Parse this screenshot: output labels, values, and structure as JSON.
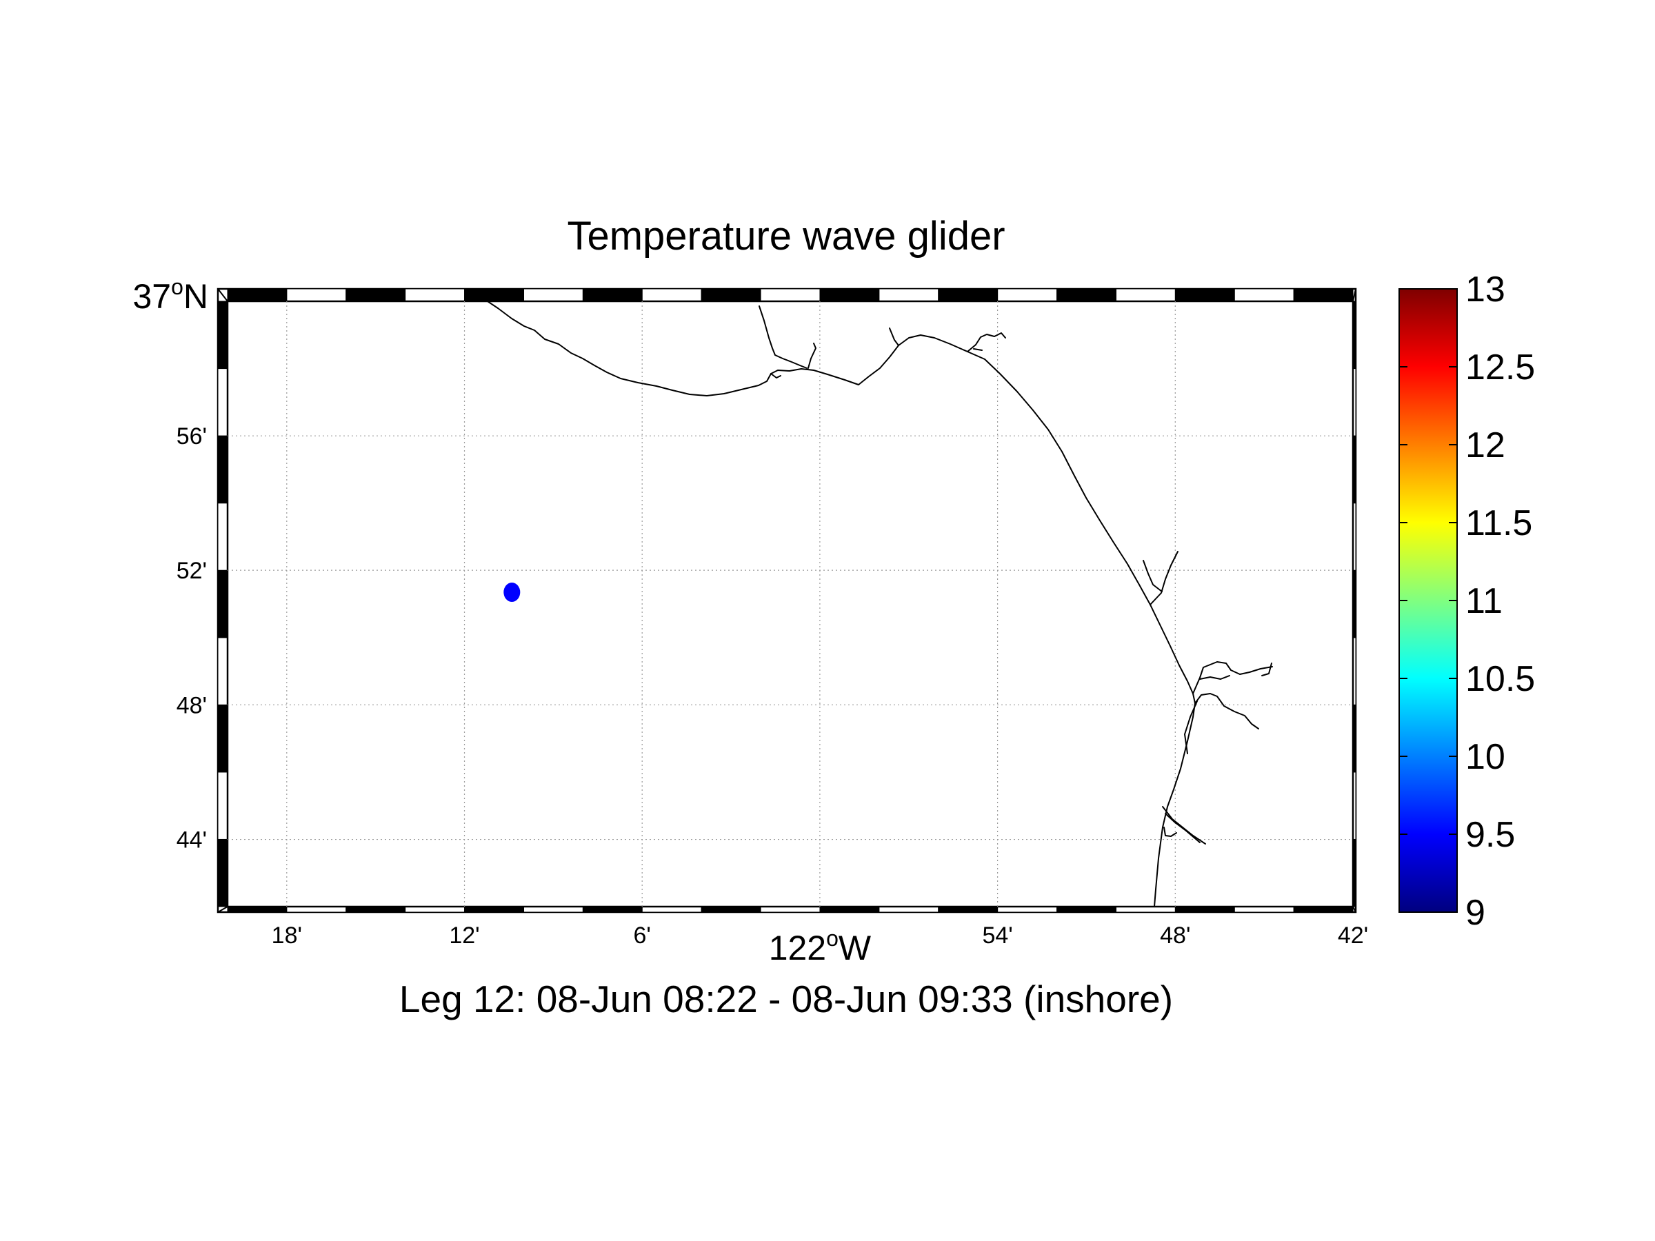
{
  "title": "Temperature wave glider",
  "subtitle": "Leg 12: 08-Jun 08:22 - 08-Jun 09:33 (inshore)",
  "map": {
    "lon_range": [
      -122.3333,
      -121.7
    ],
    "lat_range": [
      36.7,
      37.0
    ],
    "lon_ticks": [
      {
        "value": -122.3,
        "label": "18'"
      },
      {
        "value": -122.2,
        "label": "12'"
      },
      {
        "value": -122.1,
        "label": "6'"
      },
      {
        "value": -122.0,
        "label": "122",
        "sup": "o",
        "hemi": "W"
      },
      {
        "value": -121.9,
        "label": "54'"
      },
      {
        "value": -121.8,
        "label": "48'"
      },
      {
        "value": -121.7,
        "label": "42'"
      }
    ],
    "lat_ticks": [
      {
        "value": 37.0,
        "label": "37",
        "sup": "o",
        "hemi": "N"
      },
      {
        "value": 36.9333,
        "label": "56'"
      },
      {
        "value": 36.8667,
        "label": "52'"
      },
      {
        "value": 36.8,
        "label": "48'"
      },
      {
        "value": 36.7333,
        "label": "44'"
      }
    ],
    "grid": true,
    "glider_points": [
      {
        "lon": -122.1733,
        "lat": 36.8558,
        "temp": 9.5
      }
    ],
    "marker_color": "#0000ff"
  },
  "colorbar": {
    "min": 9,
    "max": 13,
    "ticks": [
      "13",
      "12.5",
      "12",
      "11.5",
      "11",
      "10.5",
      "10",
      "9.5",
      "9"
    ],
    "colormap": "jet"
  }
}
